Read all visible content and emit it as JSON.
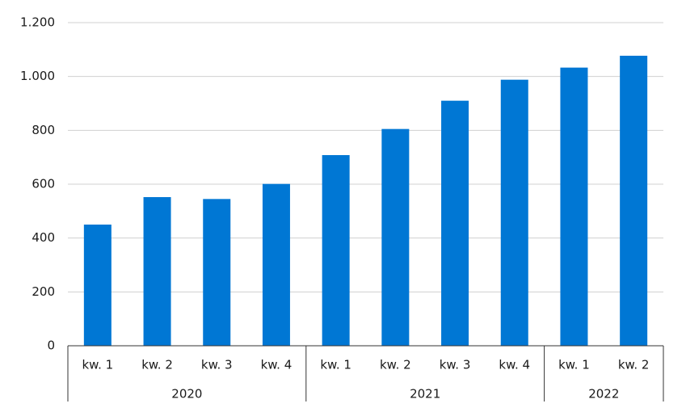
{
  "chart_data": {
    "type": "bar",
    "groups": [
      {
        "name": "2020",
        "categories": [
          "kw. 1",
          "kw. 2",
          "kw. 3",
          "kw. 4"
        ]
      },
      {
        "name": "2021",
        "categories": [
          "kw. 1",
          "kw. 2",
          "kw. 3",
          "kw. 4"
        ]
      },
      {
        "name": "2022",
        "categories": [
          "kw. 1",
          "kw. 2"
        ]
      }
    ],
    "values": [
      450,
      552,
      545,
      601,
      708,
      805,
      910,
      988,
      1033,
      1077
    ],
    "color": "#0077d4",
    "ylim": [
      0,
      1200
    ],
    "yticks": [
      0,
      200,
      400,
      600,
      800,
      {
        "value": 1000,
        "label": "1.000"
      },
      {
        "value": 1200,
        "label": "1.200"
      }
    ],
    "grid": true
  }
}
